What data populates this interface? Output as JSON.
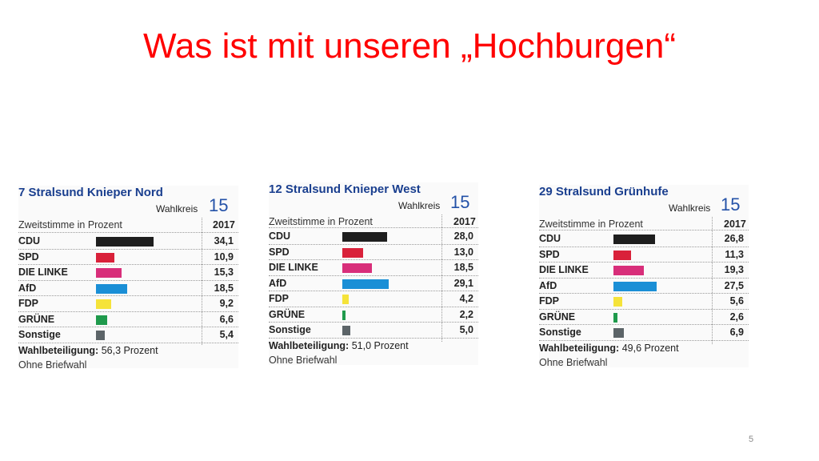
{
  "slide": {
    "title": "Was ist mit unseren „Hochburgen“",
    "page_number": "5"
  },
  "chart_data": [
    {
      "type": "bar",
      "title": "7 Stralsund Knieper Nord",
      "wahlkreis_label": "Wahlkreis",
      "wahlkreis_number": "15",
      "subtitle": "Zweitstimme in Prozent",
      "year": "2017",
      "categories": [
        "CDU",
        "SPD",
        "DIE LINKE",
        "AfD",
        "FDP",
        "GRÜNE",
        "Sonstige"
      ],
      "values": [
        34.1,
        10.9,
        15.3,
        18.5,
        9.2,
        6.6,
        5.4
      ],
      "value_labels": [
        "34,1",
        "10,9",
        "15,3",
        "18,5",
        "9,2",
        "6,6",
        "5,4"
      ],
      "turnout_label": "Wahlbeteiligung:",
      "turnout_value": "56,3 Prozent",
      "note": "Ohne Briefwahl"
    },
    {
      "type": "bar",
      "title": "12 Stralsund Knieper West",
      "wahlkreis_label": "Wahlkreis",
      "wahlkreis_number": "15",
      "subtitle": "Zweitstimme in Prozent",
      "year": "2017",
      "categories": [
        "CDU",
        "SPD",
        "DIE LINKE",
        "AfD",
        "FDP",
        "GRÜNE",
        "Sonstige"
      ],
      "values": [
        28.0,
        13.0,
        18.5,
        29.1,
        4.2,
        2.2,
        5.0
      ],
      "value_labels": [
        "28,0",
        "13,0",
        "18,5",
        "29,1",
        "4,2",
        "2,2",
        "5,0"
      ],
      "turnout_label": "Wahlbeteiligung:",
      "turnout_value": "51,0 Prozent",
      "note": "Ohne Briefwahl"
    },
    {
      "type": "bar",
      "title": "29 Stralsund Grünhufe",
      "wahlkreis_label": "Wahlkreis",
      "wahlkreis_number": "15",
      "subtitle": "Zweitstimme in Prozent",
      "year": "2017",
      "categories": [
        "CDU",
        "SPD",
        "DIE LINKE",
        "AfD",
        "FDP",
        "GRÜNE",
        "Sonstige"
      ],
      "values": [
        26.8,
        11.3,
        19.3,
        27.5,
        5.6,
        2.6,
        6.9
      ],
      "value_labels": [
        "26,8",
        "11,3",
        "19,3",
        "27,5",
        "5,6",
        "2,6",
        "6,9"
      ],
      "turnout_label": "Wahlbeteiligung:",
      "turnout_value": "49,6 Prozent",
      "note": "Ohne Briefwahl"
    }
  ],
  "colors": {
    "title": "#ff0000",
    "panel_title": "#1a3f8f",
    "parties": [
      "#1e1e1e",
      "#d9213a",
      "#d82e7a",
      "#1a8fd6",
      "#f5e33a",
      "#1f9a4c",
      "#5c6468"
    ]
  }
}
